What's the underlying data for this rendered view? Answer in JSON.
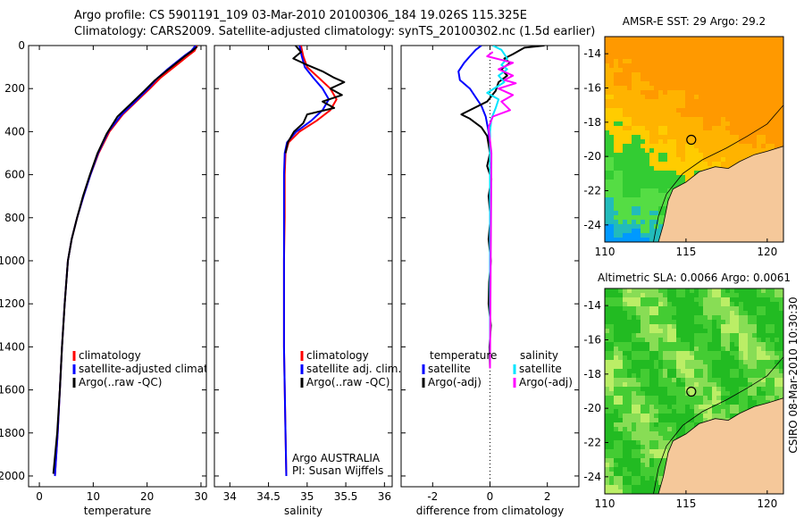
{
  "header": {
    "line1": "Argo profile: CS 5901191_109 03-Mar-2010 20100306_184 19.026S 115.325E",
    "line2": "Climatology: CARS2009. Satellite-adjusted climatology: synTS_20100302.nc (1.5d earlier)"
  },
  "side_label": "CSIRO 08-Mar-2010 10:30:30",
  "colors": {
    "climatology": "#ff0000",
    "satellite": "#0000ff",
    "argo": "#000000",
    "salinity_satellite": "#00e5ff",
    "salinity_argo": "#ff00ff",
    "land": "#f5c89a",
    "coast": "#000000"
  },
  "chart_data": [
    {
      "type": "line",
      "name": "temperature-profile",
      "xlabel": "temperature",
      "xlim": [
        -2,
        31
      ],
      "ylim": [
        0,
        2050
      ],
      "y_reversed": true,
      "xticks": [
        0,
        10,
        20,
        30
      ],
      "yticks": [
        0,
        200,
        400,
        600,
        800,
        1000,
        1200,
        1400,
        1600,
        1800,
        2000
      ],
      "legend": [
        "climatology",
        "satellite-adjusted climatology",
        "Argo(..raw -QC)"
      ],
      "series": [
        {
          "name": "climatology",
          "color": "#ff0000",
          "points": [
            [
              29.3,
              0
            ],
            [
              28.8,
              25
            ],
            [
              27.5,
              50
            ],
            [
              26,
              80
            ],
            [
              24.5,
              110
            ],
            [
              22.5,
              150
            ],
            [
              20.5,
              200
            ],
            [
              18,
              260
            ],
            [
              15.5,
              320
            ],
            [
              13,
              400
            ],
            [
              11,
              500
            ],
            [
              9.5,
              600
            ],
            [
              8.2,
              700
            ],
            [
              7,
              800
            ],
            [
              6,
              900
            ],
            [
              5.3,
              1000
            ],
            [
              4.7,
              1200
            ],
            [
              4.2,
              1400
            ],
            [
              3.8,
              1600
            ],
            [
              3.4,
              1800
            ],
            [
              2.9,
              2000
            ]
          ]
        },
        {
          "name": "satellite-adjusted climatology",
          "color": "#0000ff",
          "points": [
            [
              29.0,
              0
            ],
            [
              28.2,
              25
            ],
            [
              26.8,
              50
            ],
            [
              25.3,
              80
            ],
            [
              23.8,
              110
            ],
            [
              22,
              150
            ],
            [
              20.2,
              200
            ],
            [
              17.8,
              260
            ],
            [
              15.3,
              320
            ],
            [
              12.8,
              400
            ],
            [
              10.9,
              500
            ],
            [
              9.5,
              600
            ],
            [
              8.2,
              700
            ],
            [
              7,
              800
            ],
            [
              6,
              900
            ],
            [
              5.3,
              1000
            ],
            [
              4.7,
              1200
            ],
            [
              4.2,
              1400
            ],
            [
              3.8,
              1600
            ],
            [
              3.4,
              1800
            ],
            [
              2.9,
              2000
            ]
          ]
        },
        {
          "name": "Argo(..raw -QC)",
          "color": "#000000",
          "points": [
            [
              29.3,
              5
            ],
            [
              28.6,
              20
            ],
            [
              27,
              50
            ],
            [
              25.5,
              80
            ],
            [
              23.5,
              120
            ],
            [
              21.5,
              160
            ],
            [
              19.5,
              210
            ],
            [
              17,
              270
            ],
            [
              14.5,
              330
            ],
            [
              12.5,
              410
            ],
            [
              10.8,
              500
            ],
            [
              9.4,
              600
            ],
            [
              8.1,
              700
            ],
            [
              7,
              800
            ],
            [
              6,
              900
            ],
            [
              5.3,
              1000
            ],
            [
              4.7,
              1200
            ],
            [
              4.2,
              1400
            ],
            [
              3.8,
              1600
            ],
            [
              3.3,
              1800
            ],
            [
              2.6,
              1990
            ]
          ]
        }
      ]
    },
    {
      "type": "line",
      "name": "salinity-profile",
      "xlabel": "salinity",
      "xlim": [
        33.8,
        36.1
      ],
      "ylim": [
        0,
        2050
      ],
      "y_reversed": true,
      "xticks": [
        34,
        34.5,
        35,
        35.5,
        36
      ],
      "legend": [
        "climatology",
        "satellite adj. clim.",
        "Argo(..raw -QC)"
      ],
      "annotation": [
        "Argo AUSTRALIA",
        "PI: Susan Wijffels"
      ],
      "series": [
        {
          "name": "climatology",
          "color": "#ff0000",
          "points": [
            [
              34.92,
              0
            ],
            [
              34.95,
              50
            ],
            [
              35.0,
              100
            ],
            [
              35.15,
              150
            ],
            [
              35.3,
              200
            ],
            [
              35.38,
              250
            ],
            [
              35.3,
              300
            ],
            [
              35.12,
              350
            ],
            [
              34.9,
              400
            ],
            [
              34.76,
              450
            ],
            [
              34.72,
              500
            ],
            [
              34.71,
              600
            ],
            [
              34.71,
              800
            ],
            [
              34.7,
              1000
            ],
            [
              34.7,
              1400
            ],
            [
              34.72,
              1800
            ],
            [
              34.73,
              2000
            ]
          ]
        },
        {
          "name": "satellite adj. clim.",
          "color": "#0000ff",
          "points": [
            [
              34.9,
              0
            ],
            [
              34.93,
              50
            ],
            [
              34.97,
              100
            ],
            [
              35.08,
              150
            ],
            [
              35.2,
              200
            ],
            [
              35.28,
              250
            ],
            [
              35.2,
              300
            ],
            [
              35.05,
              350
            ],
            [
              34.86,
              400
            ],
            [
              34.74,
              450
            ],
            [
              34.71,
              500
            ],
            [
              34.7,
              600
            ],
            [
              34.7,
              800
            ],
            [
              34.7,
              1000
            ],
            [
              34.7,
              1400
            ],
            [
              34.72,
              1800
            ],
            [
              34.73,
              2000
            ]
          ]
        },
        {
          "name": "Argo(..raw -QC)",
          "color": "#000000",
          "points": [
            [
              34.85,
              0
            ],
            [
              34.92,
              30
            ],
            [
              34.82,
              60
            ],
            [
              35.0,
              90
            ],
            [
              35.2,
              120
            ],
            [
              35.35,
              150
            ],
            [
              35.48,
              170
            ],
            [
              35.3,
              200
            ],
            [
              35.45,
              230
            ],
            [
              35.2,
              260
            ],
            [
              35.35,
              290
            ],
            [
              35.0,
              320
            ],
            [
              34.95,
              360
            ],
            [
              34.83,
              400
            ],
            [
              34.75,
              450
            ],
            [
              34.72,
              500
            ]
          ]
        }
      ]
    },
    {
      "type": "line",
      "name": "difference-profile",
      "xlabel": "difference from climatology",
      "xlim": [
        -3.1,
        3.1
      ],
      "ylim": [
        0,
        2050
      ],
      "y_reversed": true,
      "xticks": [
        -2,
        0,
        2
      ],
      "legend_titles": [
        "temperature",
        "salinity"
      ],
      "legend": [
        "satellite",
        "Argo(-adj)",
        "satellite",
        "Argo(-adj)"
      ],
      "series": [
        {
          "name": "temperature satellite",
          "color": "#0000ff",
          "points": [
            [
              -0.3,
              0
            ],
            [
              -0.5,
              20
            ],
            [
              -0.7,
              50
            ],
            [
              -0.9,
              80
            ],
            [
              -1.1,
              120
            ],
            [
              -1.05,
              160
            ],
            [
              -0.7,
              200
            ],
            [
              -0.3,
              280
            ],
            [
              -0.15,
              330
            ],
            [
              -0.05,
              400
            ],
            [
              0,
              500
            ],
            [
              0,
              1000
            ],
            [
              0,
              1500
            ]
          ]
        },
        {
          "name": "temperature Argo(-adj)",
          "color": "#000000",
          "points": [
            [
              1.9,
              0
            ],
            [
              1.2,
              10
            ],
            [
              0.8,
              40
            ],
            [
              0.5,
              60
            ],
            [
              0.7,
              80
            ],
            [
              0.4,
              110
            ],
            [
              0.6,
              140
            ],
            [
              0.3,
              170
            ],
            [
              0.2,
              210
            ],
            [
              -0.1,
              260
            ],
            [
              -1.0,
              320
            ],
            [
              -0.7,
              340
            ],
            [
              -0.3,
              380
            ],
            [
              -0.1,
              420
            ],
            [
              0,
              500
            ],
            [
              -0.1,
              560
            ],
            [
              0.05,
              620
            ],
            [
              -0.05,
              700
            ],
            [
              0.02,
              800
            ],
            [
              -0.05,
              900
            ],
            [
              0.03,
              1000
            ],
            [
              -0.03,
              1100
            ],
            [
              -0.05,
              1200
            ],
            [
              0.03,
              1300
            ],
            [
              -0.02,
              1400
            ],
            [
              0,
              1500
            ]
          ]
        },
        {
          "name": "salinity satellite",
          "color": "#00e5ff",
          "points": [
            [
              0.1,
              0
            ],
            [
              0.4,
              20
            ],
            [
              0.6,
              60
            ],
            [
              0.4,
              90
            ],
            [
              0.6,
              110
            ],
            [
              0.3,
              140
            ],
            [
              0.5,
              170
            ],
            [
              -0.1,
              220
            ],
            [
              0.3,
              250
            ],
            [
              0.2,
              290
            ],
            [
              0.05,
              340
            ],
            [
              0,
              400
            ],
            [
              0,
              1500
            ]
          ]
        },
        {
          "name": "salinity Argo(-adj)",
          "color": "#ff00ff",
          "points": [
            [
              0.1,
              30
            ],
            [
              -0.1,
              50
            ],
            [
              0.8,
              80
            ],
            [
              0.3,
              110
            ],
            [
              0.8,
              140
            ],
            [
              0.5,
              160
            ],
            [
              0.9,
              175
            ],
            [
              0.3,
              200
            ],
            [
              0.8,
              230
            ],
            [
              0.4,
              260
            ],
            [
              0.7,
              300
            ],
            [
              0.1,
              330
            ],
            [
              -0.05,
              380
            ],
            [
              0,
              440
            ],
            [
              0.05,
              500
            ],
            [
              0,
              1500
            ]
          ]
        }
      ]
    }
  ],
  "maps": [
    {
      "name": "sst-map",
      "title": "AMSR-E SST: 29 Argo: 29.2",
      "xlim": [
        110,
        121
      ],
      "ylim": [
        -25,
        -13
      ],
      "xticks": [
        110,
        115,
        120
      ],
      "yticks": [
        -14,
        -16,
        -18,
        -20,
        -22,
        -24
      ],
      "argo_position": [
        115.325,
        -19.026
      ],
      "colors": [
        "#ff9900",
        "#ffb300",
        "#ffcc00",
        "#33cc33",
        "#55dd44",
        "#22bbbb",
        "#0099ff"
      ]
    },
    {
      "name": "sla-map",
      "title": "Altimetric SLA: 0.0066 Argo: 0.0061",
      "xlim": [
        110,
        121
      ],
      "ylim": [
        -25,
        -13
      ],
      "xticks": [
        110,
        115,
        120
      ],
      "yticks": [
        -14,
        -16,
        -18,
        -20,
        -22,
        -24
      ],
      "argo_position": [
        115.325,
        -19.026
      ],
      "colors": [
        "#22bb22",
        "#44cc33",
        "#88dd55",
        "#bbee66"
      ]
    }
  ]
}
